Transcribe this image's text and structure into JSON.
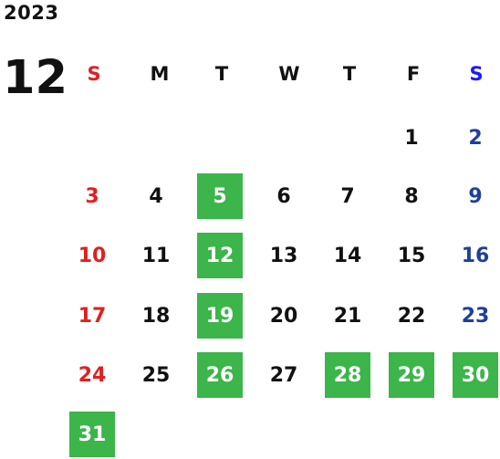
{
  "year": "2023",
  "month": "12",
  "weekdays": [
    "S",
    "M",
    "T",
    "W",
    "T",
    "F",
    "S"
  ],
  "colors": {
    "sunday": "#e02020",
    "saturday": "#1f3f9a",
    "saturday_header": "#1a1aff",
    "highlight": "#3cb54a"
  },
  "days": [
    {
      "day": "1",
      "highlight": false
    },
    {
      "day": "2",
      "highlight": false
    },
    {
      "day": "3",
      "highlight": false
    },
    {
      "day": "4",
      "highlight": false
    },
    {
      "day": "5",
      "highlight": true
    },
    {
      "day": "6",
      "highlight": false
    },
    {
      "day": "7",
      "highlight": false
    },
    {
      "day": "8",
      "highlight": false
    },
    {
      "day": "9",
      "highlight": false
    },
    {
      "day": "10",
      "highlight": false
    },
    {
      "day": "11",
      "highlight": false
    },
    {
      "day": "12",
      "highlight": true
    },
    {
      "day": "13",
      "highlight": false
    },
    {
      "day": "14",
      "highlight": false
    },
    {
      "day": "15",
      "highlight": false
    },
    {
      "day": "16",
      "highlight": false
    },
    {
      "day": "17",
      "highlight": false
    },
    {
      "day": "18",
      "highlight": false
    },
    {
      "day": "19",
      "highlight": true
    },
    {
      "day": "20",
      "highlight": false
    },
    {
      "day": "21",
      "highlight": false
    },
    {
      "day": "22",
      "highlight": false
    },
    {
      "day": "23",
      "highlight": false
    },
    {
      "day": "24",
      "highlight": false
    },
    {
      "day": "25",
      "highlight": false
    },
    {
      "day": "26",
      "highlight": true
    },
    {
      "day": "27",
      "highlight": false
    },
    {
      "day": "28",
      "highlight": true
    },
    {
      "day": "29",
      "highlight": true
    },
    {
      "day": "30",
      "highlight": true
    },
    {
      "day": "31",
      "highlight": true
    }
  ]
}
